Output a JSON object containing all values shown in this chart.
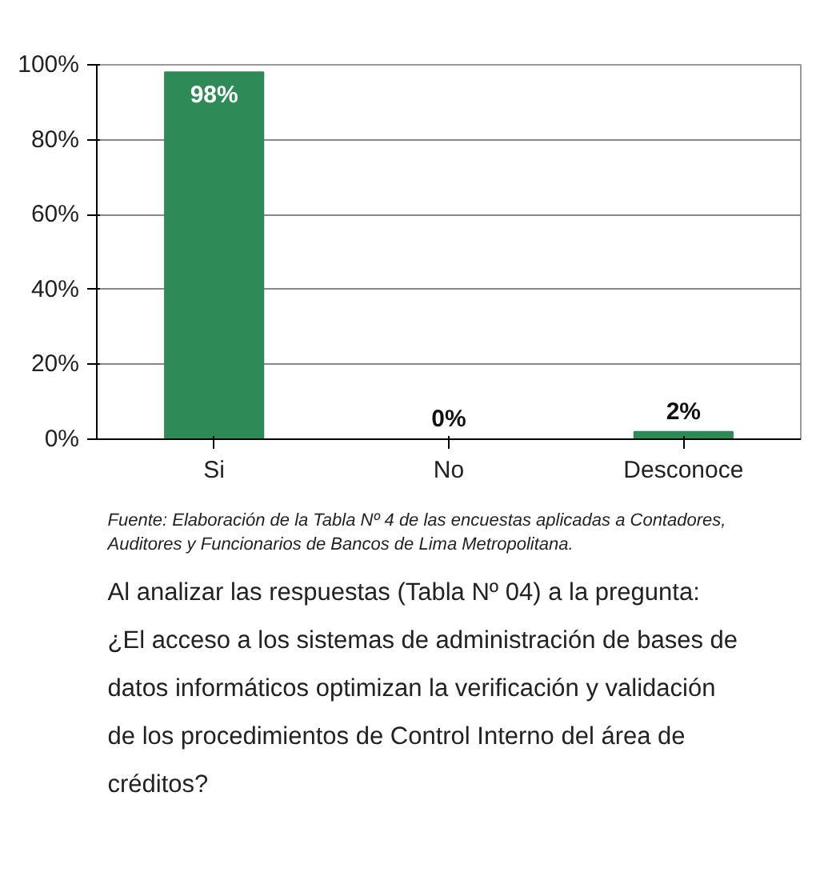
{
  "chart_data": {
    "type": "bar",
    "categories": [
      "Si",
      "No",
      "Desconoce"
    ],
    "values": [
      98,
      0,
      2
    ],
    "color": "#2e8b57",
    "ylim": [
      0,
      100
    ],
    "yticks": [
      {
        "value": 0,
        "label": "0%"
      },
      {
        "value": 20,
        "label": "20%"
      },
      {
        "value": 40,
        "label": "40%"
      },
      {
        "value": 60,
        "label": "60%"
      },
      {
        "value": 80,
        "label": "80%"
      },
      {
        "value": 100,
        "label": "100%"
      }
    ],
    "grid": "y",
    "value_labels": [
      "98%",
      "0%",
      "2%"
    ],
    "annotations": [
      "Fuente: Elaboración de la Tabla Nº 4 de las encuestas aplicadas a Contadores, Auditores y Funcionarios de Bancos de Lima Metropolitana.",
      "Al analizar las respuestas (Tabla Nº 04) a la pregunta: ¿El acceso a los sistemas de administración de bases de datos informáticos optimizan la verificación y validación de los procedimientos de Control Interno del área de créditos?"
    ]
  }
}
